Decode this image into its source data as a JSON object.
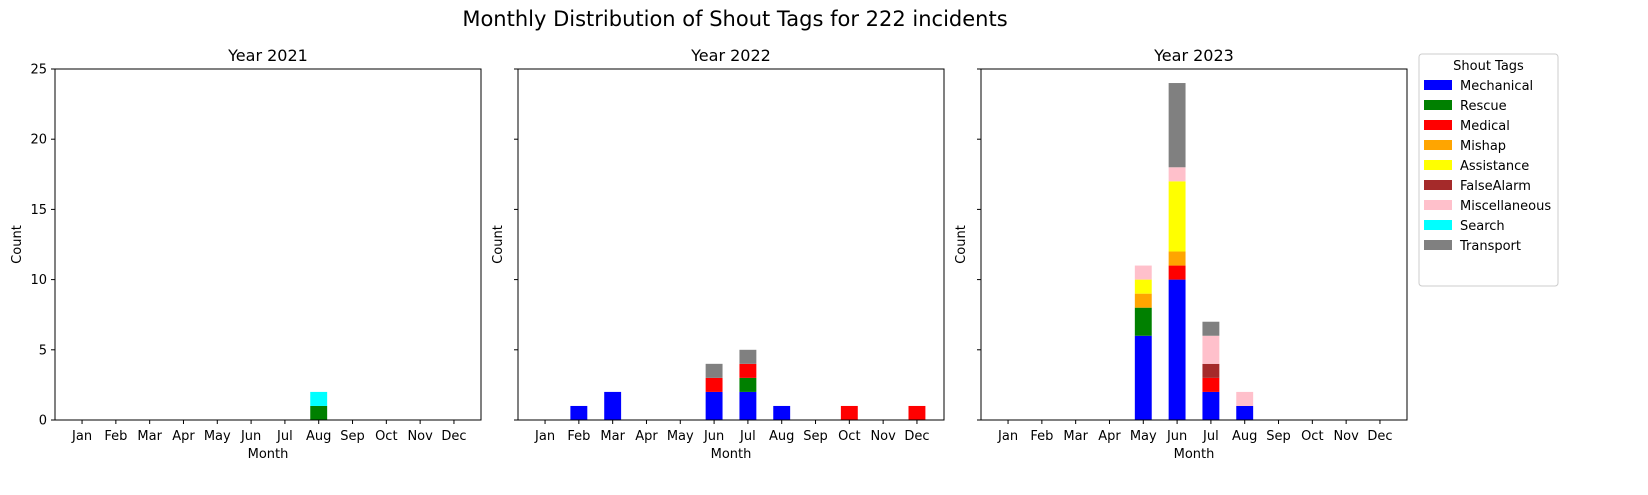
{
  "chart_data": {
    "type": "bar",
    "stacked": true,
    "title": "Monthly Distribution of Shout Tags for 222 incidents",
    "months": [
      "Jan",
      "Feb",
      "Mar",
      "Apr",
      "May",
      "Jun",
      "Jul",
      "Aug",
      "Sep",
      "Oct",
      "Nov",
      "Dec"
    ],
    "xlabel": "Month",
    "ylabel": "Count",
    "ylim": [
      0,
      25
    ],
    "yticks": [
      0,
      5,
      10,
      15,
      20,
      25
    ],
    "legend": {
      "title": "Shout Tags",
      "position": "outside-right",
      "entries": [
        {
          "name": "Mechanical",
          "color": "#0000ff"
        },
        {
          "name": "Rescue",
          "color": "#008000"
        },
        {
          "name": "Medical",
          "color": "#ff0000"
        },
        {
          "name": "Mishap",
          "color": "#ffa500"
        },
        {
          "name": "Assistance",
          "color": "#ffff00"
        },
        {
          "name": "FalseAlarm",
          "color": "#a52a2a"
        },
        {
          "name": "Miscellaneous",
          "color": "#ffc0cb"
        },
        {
          "name": "Search",
          "color": "#00ffff"
        },
        {
          "name": "Transport",
          "color": "#808080"
        }
      ]
    },
    "panels": [
      {
        "title": "Year 2021",
        "series": [
          {
            "name": "Mechanical",
            "values": [
              0,
              0,
              0,
              0,
              0,
              0,
              0,
              0,
              0,
              0,
              0,
              0
            ]
          },
          {
            "name": "Rescue",
            "values": [
              0,
              0,
              0,
              0,
              0,
              0,
              0,
              1,
              0,
              0,
              0,
              0
            ]
          },
          {
            "name": "Medical",
            "values": [
              0,
              0,
              0,
              0,
              0,
              0,
              0,
              0,
              0,
              0,
              0,
              0
            ]
          },
          {
            "name": "Mishap",
            "values": [
              0,
              0,
              0,
              0,
              0,
              0,
              0,
              0,
              0,
              0,
              0,
              0
            ]
          },
          {
            "name": "Assistance",
            "values": [
              0,
              0,
              0,
              0,
              0,
              0,
              0,
              0,
              0,
              0,
              0,
              0
            ]
          },
          {
            "name": "FalseAlarm",
            "values": [
              0,
              0,
              0,
              0,
              0,
              0,
              0,
              0,
              0,
              0,
              0,
              0
            ]
          },
          {
            "name": "Miscellaneous",
            "values": [
              0,
              0,
              0,
              0,
              0,
              0,
              0,
              0,
              0,
              0,
              0,
              0
            ]
          },
          {
            "name": "Search",
            "values": [
              0,
              0,
              0,
              0,
              0,
              0,
              0,
              1,
              0,
              0,
              0,
              0
            ]
          },
          {
            "name": "Transport",
            "values": [
              0,
              0,
              0,
              0,
              0,
              0,
              0,
              0,
              0,
              0,
              0,
              0
            ]
          }
        ]
      },
      {
        "title": "Year 2022",
        "series": [
          {
            "name": "Mechanical",
            "values": [
              0,
              1,
              2,
              0,
              0,
              2,
              2,
              1,
              0,
              0,
              0,
              0
            ]
          },
          {
            "name": "Rescue",
            "values": [
              0,
              0,
              0,
              0,
              0,
              0,
              1,
              0,
              0,
              0,
              0,
              0
            ]
          },
          {
            "name": "Medical",
            "values": [
              0,
              0,
              0,
              0,
              0,
              1,
              1,
              0,
              0,
              1,
              0,
              1
            ]
          },
          {
            "name": "Mishap",
            "values": [
              0,
              0,
              0,
              0,
              0,
              0,
              0,
              0,
              0,
              0,
              0,
              0
            ]
          },
          {
            "name": "Assistance",
            "values": [
              0,
              0,
              0,
              0,
              0,
              0,
              0,
              0,
              0,
              0,
              0,
              0
            ]
          },
          {
            "name": "FalseAlarm",
            "values": [
              0,
              0,
              0,
              0,
              0,
              0,
              0,
              0,
              0,
              0,
              0,
              0
            ]
          },
          {
            "name": "Miscellaneous",
            "values": [
              0,
              0,
              0,
              0,
              0,
              0,
              0,
              0,
              0,
              0,
              0,
              0
            ]
          },
          {
            "name": "Search",
            "values": [
              0,
              0,
              0,
              0,
              0,
              0,
              0,
              0,
              0,
              0,
              0,
              0
            ]
          },
          {
            "name": "Transport",
            "values": [
              0,
              0,
              0,
              0,
              0,
              1,
              1,
              0,
              0,
              0,
              0,
              0
            ]
          }
        ]
      },
      {
        "title": "Year 2023",
        "series": [
          {
            "name": "Mechanical",
            "values": [
              0,
              0,
              0,
              0,
              6,
              10,
              2,
              1,
              0,
              0,
              0,
              0
            ]
          },
          {
            "name": "Rescue",
            "values": [
              0,
              0,
              0,
              0,
              2,
              0,
              0,
              0,
              0,
              0,
              0,
              0
            ]
          },
          {
            "name": "Medical",
            "values": [
              0,
              0,
              0,
              0,
              0,
              1,
              1,
              0,
              0,
              0,
              0,
              0
            ]
          },
          {
            "name": "Mishap",
            "values": [
              0,
              0,
              0,
              0,
              1,
              1,
              0,
              0,
              0,
              0,
              0,
              0
            ]
          },
          {
            "name": "Assistance",
            "values": [
              0,
              0,
              0,
              0,
              1,
              5,
              0,
              0,
              0,
              0,
              0,
              0
            ]
          },
          {
            "name": "FalseAlarm",
            "values": [
              0,
              0,
              0,
              0,
              0,
              0,
              1,
              0,
              0,
              0,
              0,
              0
            ]
          },
          {
            "name": "Miscellaneous",
            "values": [
              0,
              0,
              0,
              0,
              1,
              1,
              2,
              1,
              0,
              0,
              0,
              0
            ]
          },
          {
            "name": "Search",
            "values": [
              0,
              0,
              0,
              0,
              0,
              0,
              0,
              0,
              0,
              0,
              0,
              0
            ]
          },
          {
            "name": "Transport",
            "values": [
              0,
              0,
              0,
              0,
              0,
              6,
              1,
              0,
              0,
              0,
              0,
              0
            ]
          }
        ]
      }
    ]
  }
}
